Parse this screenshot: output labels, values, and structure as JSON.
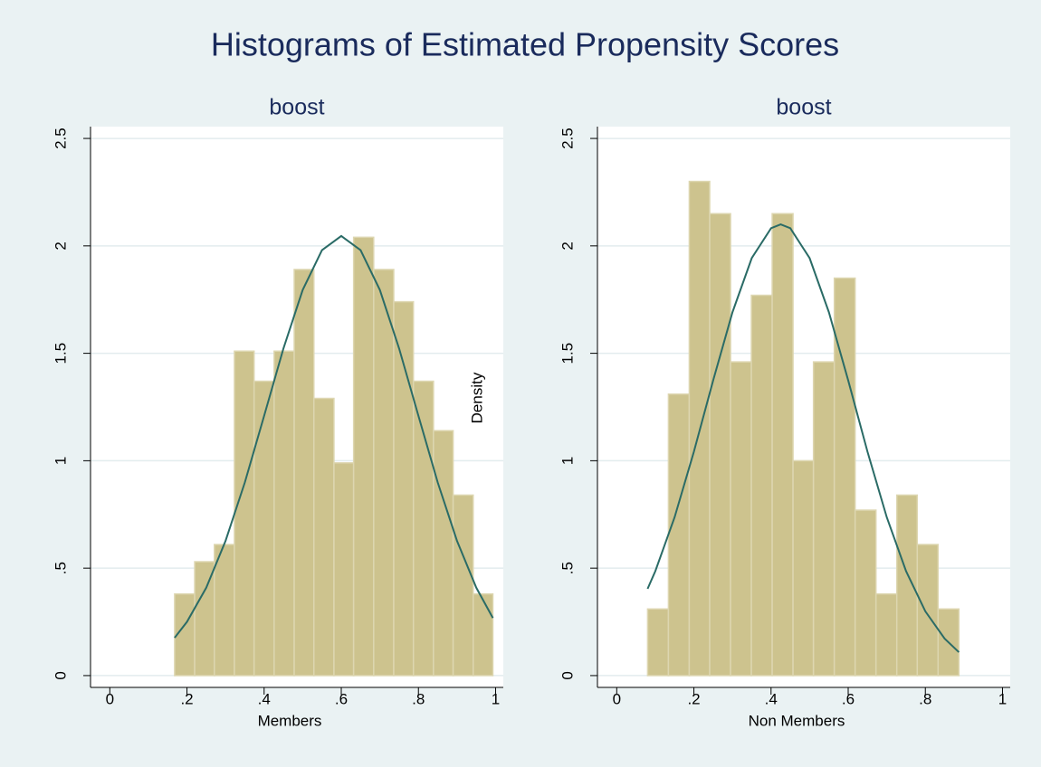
{
  "title": "Histograms of Estimated Propensity Scores",
  "chart_data": [
    {
      "type": "histogram",
      "title": "boost",
      "xlabel": "Members",
      "ylabel": "Density",
      "bins": [
        0.168,
        0.22,
        0.271,
        0.323,
        0.374,
        0.426,
        0.478,
        0.529,
        0.581,
        0.632,
        0.684,
        0.736,
        0.787,
        0.839,
        0.89,
        0.942,
        0.993
      ],
      "values": [
        0.38,
        0.53,
        0.61,
        1.51,
        1.37,
        1.51,
        1.89,
        1.29,
        0.99,
        2.04,
        1.89,
        1.74,
        1.37,
        1.14,
        0.84,
        0.38
      ],
      "curve": {
        "x": [
          0.168,
          0.2,
          0.25,
          0.3,
          0.35,
          0.4,
          0.45,
          0.5,
          0.55,
          0.6,
          0.65,
          0.7,
          0.75,
          0.8,
          0.85,
          0.9,
          0.95,
          0.993
        ],
        "values": [
          0.176,
          0.25,
          0.409,
          0.627,
          0.899,
          1.209,
          1.522,
          1.795,
          1.98,
          2.046,
          1.98,
          1.795,
          1.522,
          1.209,
          0.899,
          0.627,
          0.409,
          0.268
        ]
      },
      "xlim": [
        -0.05,
        1.02
      ],
      "ylim": [
        -0.055,
        2.555
      ],
      "xticks": [
        0,
        {
          "value": 0.2,
          "label": ".2"
        },
        {
          "value": 0.4,
          "label": ".4"
        },
        {
          "value": 0.6,
          "label": ".6"
        },
        {
          "value": 0.8,
          "label": ".8"
        },
        1
      ],
      "yticks": [
        0,
        {
          "value": 0.5,
          "label": ".5"
        },
        1,
        1.5,
        2,
        2.5
      ],
      "grid": true,
      "color": "#cdc38e",
      "curve_color": "#2a6b66"
    },
    {
      "type": "histogram",
      "title": "boost",
      "xlabel": "Non Members",
      "bins": [
        0.08,
        0.134,
        0.188,
        0.241,
        0.295,
        0.349,
        0.403,
        0.457,
        0.51,
        0.564,
        0.618,
        0.672,
        0.726,
        0.779,
        0.833,
        0.887
      ],
      "values": [
        0.31,
        1.31,
        2.3,
        2.15,
        1.46,
        1.77,
        2.15,
        1.0,
        1.46,
        1.85,
        0.77,
        0.38,
        0.84,
        0.61,
        0.31
      ],
      "curve": {
        "x": [
          0.08,
          0.1,
          0.15,
          0.2,
          0.25,
          0.3,
          0.35,
          0.4,
          0.425,
          0.45,
          0.5,
          0.55,
          0.6,
          0.65,
          0.7,
          0.75,
          0.8,
          0.85,
          0.887
        ],
        "values": [
          0.404,
          0.486,
          0.737,
          1.042,
          1.374,
          1.691,
          1.943,
          2.082,
          2.1,
          2.082,
          1.943,
          1.691,
          1.374,
          1.042,
          0.737,
          0.486,
          0.299,
          0.172,
          0.109
        ]
      },
      "xlim": [
        -0.05,
        1.02
      ],
      "ylim": [
        -0.055,
        2.555
      ],
      "xticks": [
        0,
        {
          "value": 0.2,
          "label": ".2"
        },
        {
          "value": 0.4,
          "label": ".4"
        },
        {
          "value": 0.6,
          "label": ".6"
        },
        {
          "value": 0.8,
          "label": ".8"
        },
        1
      ],
      "yticks": [
        0,
        {
          "value": 0.5,
          "label": ".5"
        },
        1,
        1.5,
        2,
        2.5
      ],
      "grid": true,
      "color": "#cdc38e",
      "curve_color": "#2a6b66"
    }
  ]
}
